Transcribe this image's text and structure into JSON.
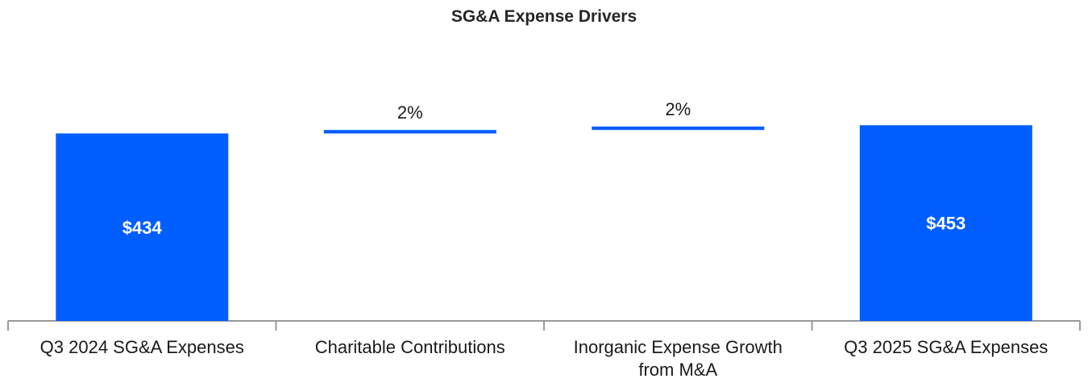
{
  "chart_data": {
    "type": "bar",
    "subtype": "waterfall",
    "title": "SG&A Expense Drivers",
    "categories": [
      [
        "Q3 2024 SG&A Expenses"
      ],
      [
        "Charitable Contributions"
      ],
      [
        "Inorganic Expense Growth",
        "from M&A"
      ],
      [
        "Q3 2025 SG&A Expenses"
      ]
    ],
    "bars": [
      {
        "kind": "total",
        "base": 0,
        "value": 434,
        "label": "$434"
      },
      {
        "kind": "delta",
        "base": 434,
        "value": 8,
        "label": "2%"
      },
      {
        "kind": "delta",
        "base": 442,
        "value": 8,
        "label": "2%"
      },
      {
        "kind": "total",
        "base": 0,
        "value": 453,
        "label": "$453"
      }
    ],
    "ylim": [
      0,
      520
    ],
    "xlabel": "",
    "ylabel": "",
    "grid": false,
    "legend": "none",
    "bar_color": "#005EFF"
  }
}
